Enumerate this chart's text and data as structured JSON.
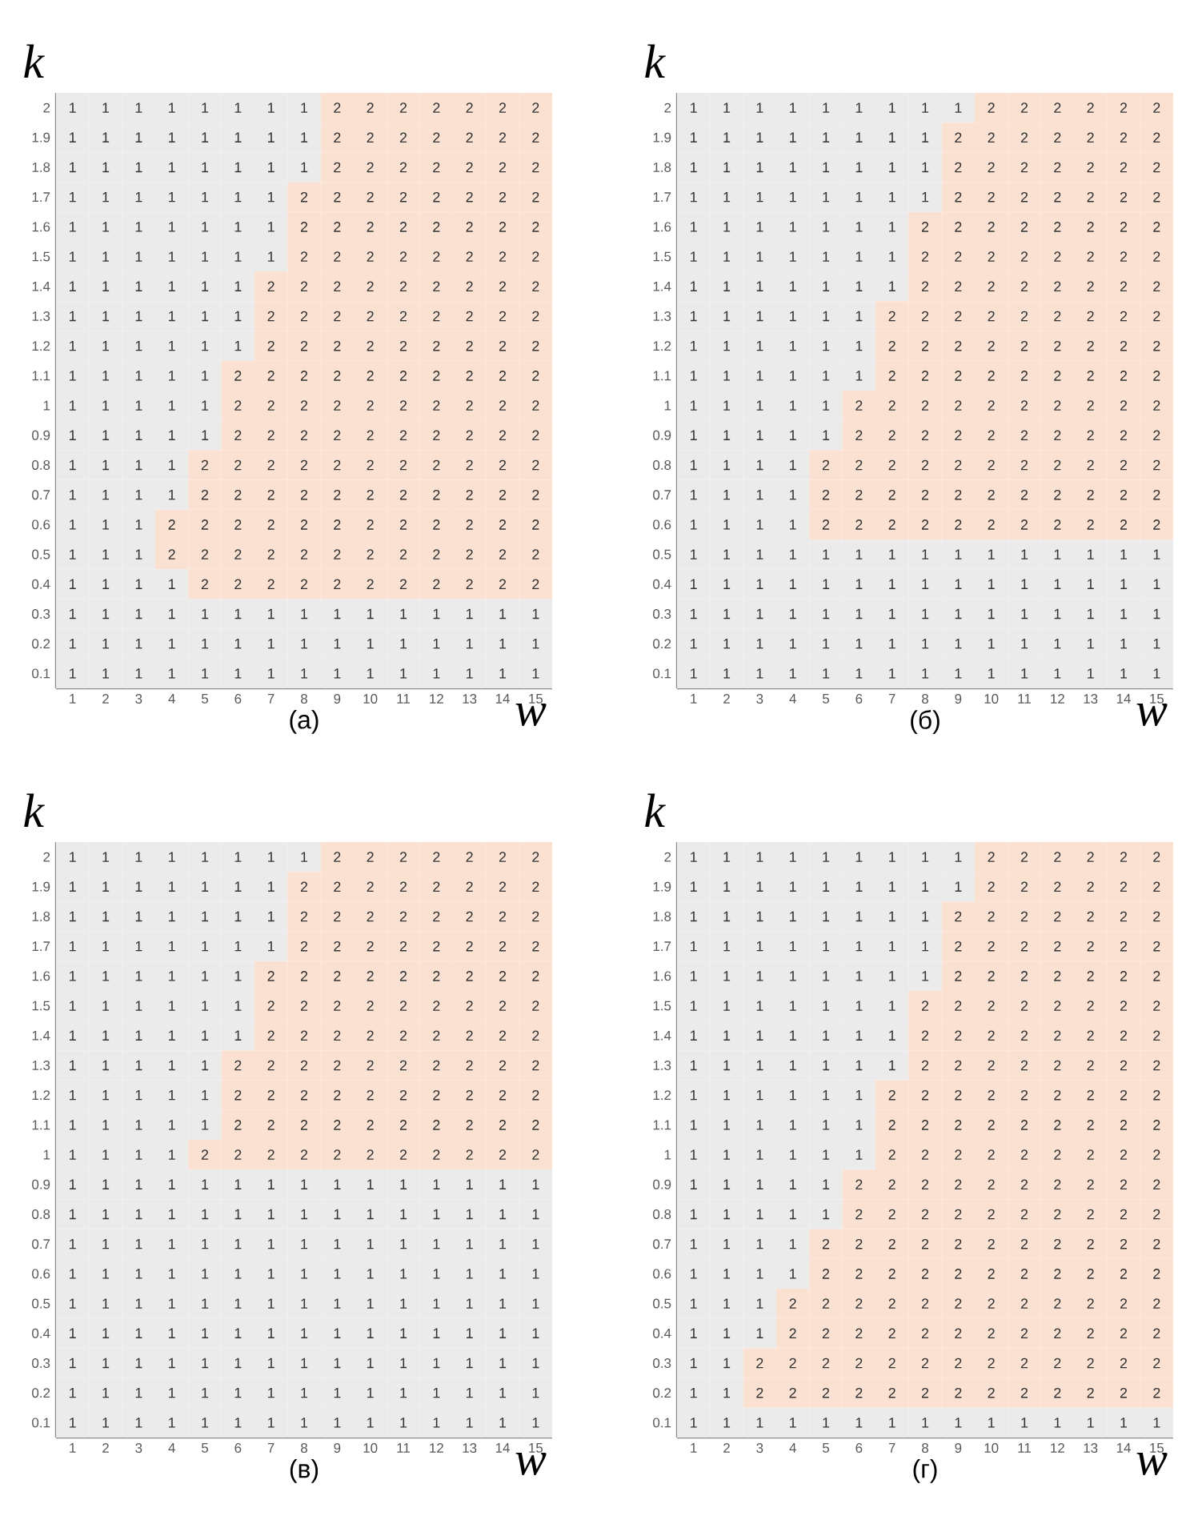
{
  "chart_data": [
    {
      "type": "heatmap",
      "title": "(а)",
      "xlabel": "w",
      "ylabel": "k",
      "data_labels": true,
      "colors": [
        "#ebebeb",
        "#fbe1d2"
      ],
      "categories": [
        "1",
        "2",
        "3",
        "4",
        "5",
        "6",
        "7",
        "8",
        "9",
        "10",
        "11",
        "12",
        "13",
        "14",
        "15"
      ],
      "y_categories": [
        "2",
        "1.9",
        "1.8",
        "1.7",
        "1.6",
        "1.5",
        "1.4",
        "1.3",
        "1.2",
        "1.1",
        "1",
        "0.9",
        "0.8",
        "0.7",
        "0.6",
        "0.5",
        "0.4",
        "0.3",
        "0.2",
        "0.1"
      ],
      "cells": [
        [
          1,
          1,
          1,
          1,
          1,
          1,
          1,
          1,
          2,
          2,
          2,
          2,
          2,
          2,
          2
        ],
        [
          1,
          1,
          1,
          1,
          1,
          1,
          1,
          1,
          2,
          2,
          2,
          2,
          2,
          2,
          2
        ],
        [
          1,
          1,
          1,
          1,
          1,
          1,
          1,
          1,
          2,
          2,
          2,
          2,
          2,
          2,
          2
        ],
        [
          1,
          1,
          1,
          1,
          1,
          1,
          1,
          2,
          2,
          2,
          2,
          2,
          2,
          2,
          2
        ],
        [
          1,
          1,
          1,
          1,
          1,
          1,
          1,
          2,
          2,
          2,
          2,
          2,
          2,
          2,
          2
        ],
        [
          1,
          1,
          1,
          1,
          1,
          1,
          1,
          2,
          2,
          2,
          2,
          2,
          2,
          2,
          2
        ],
        [
          1,
          1,
          1,
          1,
          1,
          1,
          2,
          2,
          2,
          2,
          2,
          2,
          2,
          2,
          2
        ],
        [
          1,
          1,
          1,
          1,
          1,
          1,
          2,
          2,
          2,
          2,
          2,
          2,
          2,
          2,
          2
        ],
        [
          1,
          1,
          1,
          1,
          1,
          1,
          2,
          2,
          2,
          2,
          2,
          2,
          2,
          2,
          2
        ],
        [
          1,
          1,
          1,
          1,
          1,
          2,
          2,
          2,
          2,
          2,
          2,
          2,
          2,
          2,
          2
        ],
        [
          1,
          1,
          1,
          1,
          1,
          2,
          2,
          2,
          2,
          2,
          2,
          2,
          2,
          2,
          2
        ],
        [
          1,
          1,
          1,
          1,
          1,
          2,
          2,
          2,
          2,
          2,
          2,
          2,
          2,
          2,
          2
        ],
        [
          1,
          1,
          1,
          1,
          2,
          2,
          2,
          2,
          2,
          2,
          2,
          2,
          2,
          2,
          2
        ],
        [
          1,
          1,
          1,
          1,
          2,
          2,
          2,
          2,
          2,
          2,
          2,
          2,
          2,
          2,
          2
        ],
        [
          1,
          1,
          1,
          2,
          2,
          2,
          2,
          2,
          2,
          2,
          2,
          2,
          2,
          2,
          2
        ],
        [
          1,
          1,
          1,
          2,
          2,
          2,
          2,
          2,
          2,
          2,
          2,
          2,
          2,
          2,
          2
        ],
        [
          1,
          1,
          1,
          1,
          2,
          2,
          2,
          2,
          2,
          2,
          2,
          2,
          2,
          2,
          2
        ],
        [
          1,
          1,
          1,
          1,
          1,
          1,
          1,
          1,
          1,
          1,
          1,
          1,
          1,
          1,
          1
        ],
        [
          1,
          1,
          1,
          1,
          1,
          1,
          1,
          1,
          1,
          1,
          1,
          1,
          1,
          1,
          1
        ],
        [
          1,
          1,
          1,
          1,
          1,
          1,
          1,
          1,
          1,
          1,
          1,
          1,
          1,
          1,
          1
        ]
      ]
    },
    {
      "type": "heatmap",
      "title": "(б)",
      "xlabel": "w",
      "ylabel": "k",
      "data_labels": true,
      "colors": [
        "#ebebeb",
        "#fbe1d2"
      ],
      "categories": [
        "1",
        "2",
        "3",
        "4",
        "5",
        "6",
        "7",
        "8",
        "9",
        "10",
        "11",
        "12",
        "13",
        "14",
        "15"
      ],
      "y_categories": [
        "2",
        "1.9",
        "1.8",
        "1.7",
        "1.6",
        "1.5",
        "1.4",
        "1.3",
        "1.2",
        "1.1",
        "1",
        "0.9",
        "0.8",
        "0.7",
        "0.6",
        "0.5",
        "0.4",
        "0.3",
        "0.2",
        "0.1"
      ],
      "cells": [
        [
          1,
          1,
          1,
          1,
          1,
          1,
          1,
          1,
          1,
          2,
          2,
          2,
          2,
          2,
          2
        ],
        [
          1,
          1,
          1,
          1,
          1,
          1,
          1,
          1,
          2,
          2,
          2,
          2,
          2,
          2,
          2
        ],
        [
          1,
          1,
          1,
          1,
          1,
          1,
          1,
          1,
          2,
          2,
          2,
          2,
          2,
          2,
          2
        ],
        [
          1,
          1,
          1,
          1,
          1,
          1,
          1,
          1,
          2,
          2,
          2,
          2,
          2,
          2,
          2
        ],
        [
          1,
          1,
          1,
          1,
          1,
          1,
          1,
          2,
          2,
          2,
          2,
          2,
          2,
          2,
          2
        ],
        [
          1,
          1,
          1,
          1,
          1,
          1,
          1,
          2,
          2,
          2,
          2,
          2,
          2,
          2,
          2
        ],
        [
          1,
          1,
          1,
          1,
          1,
          1,
          1,
          2,
          2,
          2,
          2,
          2,
          2,
          2,
          2
        ],
        [
          1,
          1,
          1,
          1,
          1,
          1,
          2,
          2,
          2,
          2,
          2,
          2,
          2,
          2,
          2
        ],
        [
          1,
          1,
          1,
          1,
          1,
          1,
          2,
          2,
          2,
          2,
          2,
          2,
          2,
          2,
          2
        ],
        [
          1,
          1,
          1,
          1,
          1,
          1,
          2,
          2,
          2,
          2,
          2,
          2,
          2,
          2,
          2
        ],
        [
          1,
          1,
          1,
          1,
          1,
          2,
          2,
          2,
          2,
          2,
          2,
          2,
          2,
          2,
          2
        ],
        [
          1,
          1,
          1,
          1,
          1,
          2,
          2,
          2,
          2,
          2,
          2,
          2,
          2,
          2,
          2
        ],
        [
          1,
          1,
          1,
          1,
          2,
          2,
          2,
          2,
          2,
          2,
          2,
          2,
          2,
          2,
          2
        ],
        [
          1,
          1,
          1,
          1,
          2,
          2,
          2,
          2,
          2,
          2,
          2,
          2,
          2,
          2,
          2
        ],
        [
          1,
          1,
          1,
          1,
          2,
          2,
          2,
          2,
          2,
          2,
          2,
          2,
          2,
          2,
          2
        ],
        [
          1,
          1,
          1,
          1,
          1,
          1,
          1,
          1,
          1,
          1,
          1,
          1,
          1,
          1,
          1
        ],
        [
          1,
          1,
          1,
          1,
          1,
          1,
          1,
          1,
          1,
          1,
          1,
          1,
          1,
          1,
          1
        ],
        [
          1,
          1,
          1,
          1,
          1,
          1,
          1,
          1,
          1,
          1,
          1,
          1,
          1,
          1,
          1
        ],
        [
          1,
          1,
          1,
          1,
          1,
          1,
          1,
          1,
          1,
          1,
          1,
          1,
          1,
          1,
          1
        ],
        [
          1,
          1,
          1,
          1,
          1,
          1,
          1,
          1,
          1,
          1,
          1,
          1,
          1,
          1,
          1
        ]
      ]
    },
    {
      "type": "heatmap",
      "title": "(в)",
      "xlabel": "w",
      "ylabel": "k",
      "data_labels": true,
      "colors": [
        "#ebebeb",
        "#fbe1d2"
      ],
      "categories": [
        "1",
        "2",
        "3",
        "4",
        "5",
        "6",
        "7",
        "8",
        "9",
        "10",
        "11",
        "12",
        "13",
        "14",
        "15"
      ],
      "y_categories": [
        "2",
        "1.9",
        "1.8",
        "1.7",
        "1.6",
        "1.5",
        "1.4",
        "1.3",
        "1.2",
        "1.1",
        "1",
        "0.9",
        "0.8",
        "0.7",
        "0.6",
        "0.5",
        "0.4",
        "0.3",
        "0.2",
        "0.1"
      ],
      "cells": [
        [
          1,
          1,
          1,
          1,
          1,
          1,
          1,
          1,
          2,
          2,
          2,
          2,
          2,
          2,
          2
        ],
        [
          1,
          1,
          1,
          1,
          1,
          1,
          1,
          2,
          2,
          2,
          2,
          2,
          2,
          2,
          2
        ],
        [
          1,
          1,
          1,
          1,
          1,
          1,
          1,
          2,
          2,
          2,
          2,
          2,
          2,
          2,
          2
        ],
        [
          1,
          1,
          1,
          1,
          1,
          1,
          1,
          2,
          2,
          2,
          2,
          2,
          2,
          2,
          2
        ],
        [
          1,
          1,
          1,
          1,
          1,
          1,
          2,
          2,
          2,
          2,
          2,
          2,
          2,
          2,
          2
        ],
        [
          1,
          1,
          1,
          1,
          1,
          1,
          2,
          2,
          2,
          2,
          2,
          2,
          2,
          2,
          2
        ],
        [
          1,
          1,
          1,
          1,
          1,
          1,
          2,
          2,
          2,
          2,
          2,
          2,
          2,
          2,
          2
        ],
        [
          1,
          1,
          1,
          1,
          1,
          2,
          2,
          2,
          2,
          2,
          2,
          2,
          2,
          2,
          2
        ],
        [
          1,
          1,
          1,
          1,
          1,
          2,
          2,
          2,
          2,
          2,
          2,
          2,
          2,
          2,
          2
        ],
        [
          1,
          1,
          1,
          1,
          1,
          2,
          2,
          2,
          2,
          2,
          2,
          2,
          2,
          2,
          2
        ],
        [
          1,
          1,
          1,
          1,
          2,
          2,
          2,
          2,
          2,
          2,
          2,
          2,
          2,
          2,
          2
        ],
        [
          1,
          1,
          1,
          1,
          1,
          1,
          1,
          1,
          1,
          1,
          1,
          1,
          1,
          1,
          1
        ],
        [
          1,
          1,
          1,
          1,
          1,
          1,
          1,
          1,
          1,
          1,
          1,
          1,
          1,
          1,
          1
        ],
        [
          1,
          1,
          1,
          1,
          1,
          1,
          1,
          1,
          1,
          1,
          1,
          1,
          1,
          1,
          1
        ],
        [
          1,
          1,
          1,
          1,
          1,
          1,
          1,
          1,
          1,
          1,
          1,
          1,
          1,
          1,
          1
        ],
        [
          1,
          1,
          1,
          1,
          1,
          1,
          1,
          1,
          1,
          1,
          1,
          1,
          1,
          1,
          1
        ],
        [
          1,
          1,
          1,
          1,
          1,
          1,
          1,
          1,
          1,
          1,
          1,
          1,
          1,
          1,
          1
        ],
        [
          1,
          1,
          1,
          1,
          1,
          1,
          1,
          1,
          1,
          1,
          1,
          1,
          1,
          1,
          1
        ],
        [
          1,
          1,
          1,
          1,
          1,
          1,
          1,
          1,
          1,
          1,
          1,
          1,
          1,
          1,
          1
        ],
        [
          1,
          1,
          1,
          1,
          1,
          1,
          1,
          1,
          1,
          1,
          1,
          1,
          1,
          1,
          1
        ]
      ]
    },
    {
      "type": "heatmap",
      "title": "(г)",
      "xlabel": "w",
      "ylabel": "k",
      "data_labels": true,
      "colors": [
        "#ebebeb",
        "#fbe1d2"
      ],
      "categories": [
        "1",
        "2",
        "3",
        "4",
        "5",
        "6",
        "7",
        "8",
        "9",
        "10",
        "11",
        "12",
        "13",
        "14",
        "15"
      ],
      "y_categories": [
        "2",
        "1.9",
        "1.8",
        "1.7",
        "1.6",
        "1.5",
        "1.4",
        "1.3",
        "1.2",
        "1.1",
        "1",
        "0.9",
        "0.8",
        "0.7",
        "0.6",
        "0.5",
        "0.4",
        "0.3",
        "0.2",
        "0.1"
      ],
      "cells": [
        [
          1,
          1,
          1,
          1,
          1,
          1,
          1,
          1,
          1,
          2,
          2,
          2,
          2,
          2,
          2
        ],
        [
          1,
          1,
          1,
          1,
          1,
          1,
          1,
          1,
          1,
          2,
          2,
          2,
          2,
          2,
          2
        ],
        [
          1,
          1,
          1,
          1,
          1,
          1,
          1,
          1,
          2,
          2,
          2,
          2,
          2,
          2,
          2
        ],
        [
          1,
          1,
          1,
          1,
          1,
          1,
          1,
          1,
          2,
          2,
          2,
          2,
          2,
          2,
          2
        ],
        [
          1,
          1,
          1,
          1,
          1,
          1,
          1,
          1,
          2,
          2,
          2,
          2,
          2,
          2,
          2
        ],
        [
          1,
          1,
          1,
          1,
          1,
          1,
          1,
          2,
          2,
          2,
          2,
          2,
          2,
          2,
          2
        ],
        [
          1,
          1,
          1,
          1,
          1,
          1,
          1,
          2,
          2,
          2,
          2,
          2,
          2,
          2,
          2
        ],
        [
          1,
          1,
          1,
          1,
          1,
          1,
          1,
          2,
          2,
          2,
          2,
          2,
          2,
          2,
          2
        ],
        [
          1,
          1,
          1,
          1,
          1,
          1,
          2,
          2,
          2,
          2,
          2,
          2,
          2,
          2,
          2
        ],
        [
          1,
          1,
          1,
          1,
          1,
          1,
          2,
          2,
          2,
          2,
          2,
          2,
          2,
          2,
          2
        ],
        [
          1,
          1,
          1,
          1,
          1,
          1,
          2,
          2,
          2,
          2,
          2,
          2,
          2,
          2,
          2
        ],
        [
          1,
          1,
          1,
          1,
          1,
          2,
          2,
          2,
          2,
          2,
          2,
          2,
          2,
          2,
          2
        ],
        [
          1,
          1,
          1,
          1,
          1,
          2,
          2,
          2,
          2,
          2,
          2,
          2,
          2,
          2,
          2
        ],
        [
          1,
          1,
          1,
          1,
          2,
          2,
          2,
          2,
          2,
          2,
          2,
          2,
          2,
          2,
          2
        ],
        [
          1,
          1,
          1,
          1,
          2,
          2,
          2,
          2,
          2,
          2,
          2,
          2,
          2,
          2,
          2
        ],
        [
          1,
          1,
          1,
          2,
          2,
          2,
          2,
          2,
          2,
          2,
          2,
          2,
          2,
          2,
          2
        ],
        [
          1,
          1,
          1,
          2,
          2,
          2,
          2,
          2,
          2,
          2,
          2,
          2,
          2,
          2,
          2
        ],
        [
          1,
          1,
          2,
          2,
          2,
          2,
          2,
          2,
          2,
          2,
          2,
          2,
          2,
          2,
          2
        ],
        [
          1,
          1,
          2,
          2,
          2,
          2,
          2,
          2,
          2,
          2,
          2,
          2,
          2,
          2,
          2
        ],
        [
          1,
          1,
          1,
          1,
          1,
          1,
          1,
          1,
          1,
          1,
          1,
          1,
          1,
          1,
          1
        ]
      ]
    }
  ]
}
